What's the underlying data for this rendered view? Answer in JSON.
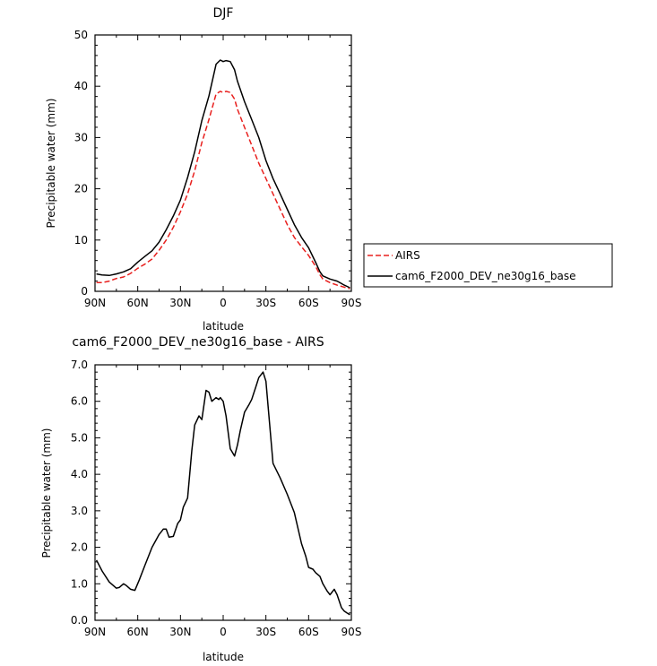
{
  "chart_data": [
    {
      "type": "line",
      "title": "DJF",
      "xlabel": "latitude",
      "ylabel": "Precipitable water (mm)",
      "x_unit": "degrees latitude (north positive)",
      "xlim": [
        90,
        -90
      ],
      "ylim": [
        0,
        50
      ],
      "xticks": [
        90,
        60,
        30,
        0,
        -30,
        -60,
        -90
      ],
      "xtick_labels": [
        "90N",
        "60N",
        "30N",
        "0",
        "30S",
        "60S",
        "90S"
      ],
      "yticks": [
        0,
        10,
        20,
        30,
        40,
        50
      ],
      "ytick_labels": [
        "0",
        "10",
        "20",
        "30",
        "40",
        "50"
      ],
      "legend_position": "right, outside plot",
      "series": [
        {
          "name": "AIRS",
          "color": "#e8201e",
          "dash": "dashed",
          "x": [
            89,
            85,
            80,
            75,
            70,
            65,
            60,
            55,
            50,
            45,
            40,
            35,
            30,
            25,
            20,
            15,
            10,
            5,
            2,
            0,
            -2,
            -5,
            -8,
            -10,
            -15,
            -20,
            -25,
            -30,
            -35,
            -40,
            -45,
            -50,
            -55,
            -60,
            -65,
            -68,
            -70,
            -75,
            -80,
            -85,
            -89
          ],
          "y": [
            1.7,
            1.7,
            2.0,
            2.5,
            2.8,
            3.5,
            4.5,
            5.3,
            6.3,
            8.0,
            10.0,
            12.5,
            15.5,
            19.0,
            23.5,
            29.0,
            33.5,
            38.5,
            39.0,
            38.8,
            39.0,
            38.8,
            37.5,
            35.5,
            32.0,
            28.5,
            25.0,
            22.0,
            19.0,
            16.0,
            13.0,
            10.5,
            8.7,
            7.0,
            4.8,
            3.2,
            2.4,
            1.7,
            1.2,
            0.8,
            0.5
          ]
        },
        {
          "name": "cam6_F2000_DEV_ne30g16_base",
          "color": "#000000",
          "dash": "solid",
          "x": [
            89,
            85,
            80,
            75,
            70,
            65,
            60,
            55,
            50,
            45,
            40,
            35,
            30,
            25,
            20,
            15,
            10,
            5,
            2,
            0,
            -2,
            -5,
            -8,
            -10,
            -15,
            -20,
            -25,
            -30,
            -35,
            -40,
            -45,
            -50,
            -55,
            -60,
            -65,
            -68,
            -70,
            -75,
            -80,
            -85,
            -89
          ],
          "y": [
            3.4,
            3.2,
            3.1,
            3.4,
            3.8,
            4.4,
            5.7,
            6.8,
            7.9,
            9.6,
            12.0,
            14.7,
            17.8,
            22.2,
            27.2,
            33.3,
            38.1,
            44.3,
            45.1,
            44.8,
            45.0,
            44.8,
            43.2,
            41.0,
            37.0,
            33.5,
            30.0,
            25.5,
            22.0,
            19.0,
            16.0,
            13.0,
            10.5,
            8.5,
            5.6,
            3.8,
            3.0,
            2.4,
            2.0,
            1.2,
            0.7
          ]
        }
      ]
    },
    {
      "type": "line",
      "title": "cam6_F2000_DEV_ne30g16_base - AIRS",
      "xlabel": "latitude",
      "ylabel": "Precipitable water (mm)",
      "x_unit": "degrees latitude (north positive)",
      "xlim": [
        90,
        -90
      ],
      "ylim": [
        0,
        7
      ],
      "xticks": [
        90,
        60,
        30,
        0,
        -30,
        -60,
        -90
      ],
      "xtick_labels": [
        "90N",
        "60N",
        "30N",
        "0",
        "30S",
        "60S",
        "90S"
      ],
      "yticks": [
        0,
        1,
        2,
        3,
        4,
        5,
        6,
        7
      ],
      "ytick_labels": [
        "0.0",
        "1.0",
        "2.0",
        "3.0",
        "4.0",
        "5.0",
        "6.0",
        "7.0"
      ],
      "series": [
        {
          "color": "#000000",
          "dash": "solid",
          "x": [
            89,
            85,
            80,
            75,
            73,
            70,
            68,
            65,
            62,
            59,
            55,
            50,
            45,
            42,
            40,
            38,
            35,
            32,
            30,
            28,
            25,
            22,
            20,
            17,
            15,
            12,
            10,
            8,
            5,
            3,
            2,
            0,
            -2,
            -5,
            -8,
            -10,
            -12,
            -15,
            -18,
            -20,
            -23,
            -25,
            -28,
            -30,
            -35,
            -40,
            -45,
            -50,
            -55,
            -58,
            -60,
            -63,
            -65,
            -68,
            -70,
            -73,
            -75,
            -78,
            -80,
            -83,
            -85,
            -87,
            -89
          ],
          "y": [
            1.65,
            1.35,
            1.05,
            0.88,
            0.9,
            1.0,
            0.95,
            0.85,
            0.82,
            1.1,
            1.5,
            2.0,
            2.35,
            2.5,
            2.5,
            2.28,
            2.3,
            2.65,
            2.75,
            3.1,
            3.35,
            4.65,
            5.35,
            5.6,
            5.5,
            6.3,
            6.25,
            6.0,
            6.1,
            6.05,
            6.1,
            6.0,
            5.6,
            4.7,
            4.5,
            4.8,
            5.2,
            5.7,
            5.9,
            6.05,
            6.4,
            6.65,
            6.8,
            6.55,
            4.3,
            3.9,
            3.45,
            2.95,
            2.1,
            1.75,
            1.45,
            1.4,
            1.3,
            1.2,
            1.0,
            0.8,
            0.7,
            0.85,
            0.7,
            0.35,
            0.25,
            0.2,
            0.15
          ]
        }
      ]
    }
  ]
}
